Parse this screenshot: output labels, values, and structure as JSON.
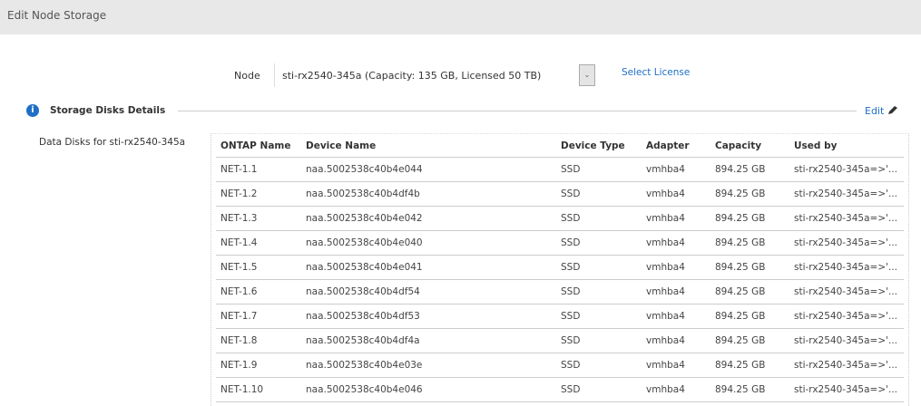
{
  "header": {
    "title": "Edit Node Storage"
  },
  "node": {
    "label": "Node",
    "value": "sti-rx2540-345a (Capacity: 135 GB, Licensed 50 TB)",
    "select_license": "Select License"
  },
  "section": {
    "icon": "info-icon",
    "title": "Storage Disks Details",
    "edit": "Edit",
    "edit_icon": "pencil-icon"
  },
  "disks_label": "Data Disks for sti-rx2540-345a",
  "table": {
    "columns": [
      "ONTAP Name",
      "Device Name",
      "Device Type",
      "Adapter",
      "Capacity",
      "Used by"
    ],
    "rows": [
      [
        "NET-1.1",
        "naa.5002538c40b4e044",
        "SSD",
        "vmhba4",
        "894.25 GB",
        "sti-rx2540-345a=>'..."
      ],
      [
        "NET-1.2",
        "naa.5002538c40b4df4b",
        "SSD",
        "vmhba4",
        "894.25 GB",
        "sti-rx2540-345a=>'..."
      ],
      [
        "NET-1.3",
        "naa.5002538c40b4e042",
        "SSD",
        "vmhba4",
        "894.25 GB",
        "sti-rx2540-345a=>'..."
      ],
      [
        "NET-1.4",
        "naa.5002538c40b4e040",
        "SSD",
        "vmhba4",
        "894.25 GB",
        "sti-rx2540-345a=>'..."
      ],
      [
        "NET-1.5",
        "naa.5002538c40b4e041",
        "SSD",
        "vmhba4",
        "894.25 GB",
        "sti-rx2540-345a=>'..."
      ],
      [
        "NET-1.6",
        "naa.5002538c40b4df54",
        "SSD",
        "vmhba4",
        "894.25 GB",
        "sti-rx2540-345a=>'..."
      ],
      [
        "NET-1.7",
        "naa.5002538c40b4df53",
        "SSD",
        "vmhba4",
        "894.25 GB",
        "sti-rx2540-345a=>'..."
      ],
      [
        "NET-1.8",
        "naa.5002538c40b4df4a",
        "SSD",
        "vmhba4",
        "894.25 GB",
        "sti-rx2540-345a=>'..."
      ],
      [
        "NET-1.9",
        "naa.5002538c40b4e03e",
        "SSD",
        "vmhba4",
        "894.25 GB",
        "sti-rx2540-345a=>'..."
      ],
      [
        "NET-1.10",
        "naa.5002538c40b4e046",
        "SSD",
        "vmhba4",
        "894.25 GB",
        "sti-rx2540-345a=>'..."
      ]
    ]
  }
}
